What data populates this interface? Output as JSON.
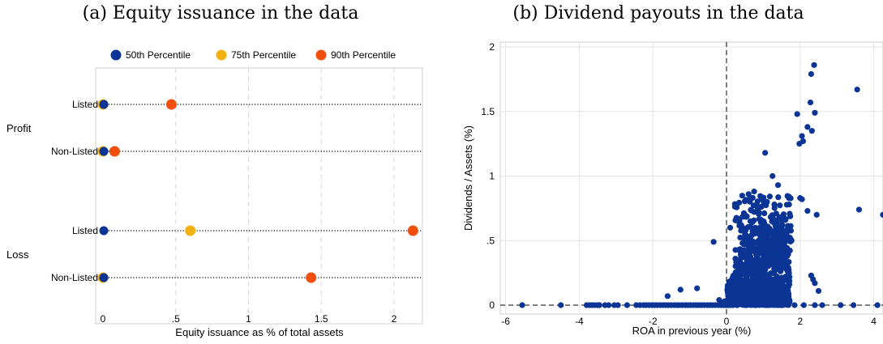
{
  "chart_data": [
    {
      "type": "dot",
      "title": "(a) Equity issuance in the data",
      "xlabel": "Equity issuance as % of total assets",
      "xlim": [
        0,
        2.2
      ],
      "xticks": [
        {
          "v": 0,
          "label": "0"
        },
        {
          "v": 0.5,
          "label": ".5"
        },
        {
          "v": 1,
          "label": "1"
        },
        {
          "v": 1.5,
          "label": "1.5"
        },
        {
          "v": 2,
          "label": "2"
        }
      ],
      "legend_position": "top",
      "grid": "vertical-dashed",
      "groups": [
        "Profit",
        "Loss"
      ],
      "rows": [
        {
          "group": "Profit",
          "label": "Listed"
        },
        {
          "group": "Profit",
          "label": "Non-Listed"
        },
        {
          "group": "Loss",
          "label": "Listed"
        },
        {
          "group": "Loss",
          "label": "Non-Listed"
        }
      ],
      "series": [
        {
          "name": "50th Percentile",
          "color": "#0b3595",
          "values": [
            0,
            0,
            0,
            0
          ]
        },
        {
          "name": "75th Percentile",
          "color": "#f2b011",
          "values": [
            0,
            0,
            0.6,
            0
          ]
        },
        {
          "name": "90th Percentile",
          "color": "#f24e0e",
          "values": [
            0.47,
            0.08,
            2.13,
            1.43
          ]
        }
      ]
    },
    {
      "type": "scatter",
      "title": "(b) Dividend payouts in the data",
      "xlabel": "ROA in previous year (%)",
      "ylabel": "Dividends / Assets (%)",
      "xlim": [
        -6.2,
        4.3
      ],
      "ylim": [
        -0.03,
        2.05
      ],
      "xticks": [
        {
          "v": -6,
          "label": "-6"
        },
        {
          "v": -4,
          "label": "-4"
        },
        {
          "v": -2,
          "label": "-2"
        },
        {
          "v": 0,
          "label": "0"
        },
        {
          "v": 2,
          "label": "2"
        },
        {
          "v": 4,
          "label": "4"
        }
      ],
      "yticks": [
        {
          "v": 0,
          "label": "0"
        },
        {
          "v": 0.5,
          "label": ".5"
        },
        {
          "v": 1,
          "label": "1"
        },
        {
          "v": 1.5,
          "label": "1.5"
        },
        {
          "v": 2,
          "label": "2"
        }
      ],
      "grid": true,
      "reference_lines": {
        "x": 0,
        "y": 0
      },
      "color": "#0b3595",
      "points": [
        [
          -5.55,
          0
        ],
        [
          -4.5,
          0
        ],
        [
          -3.8,
          0
        ],
        [
          -3.72,
          0
        ],
        [
          -3.65,
          0
        ],
        [
          -3.58,
          0
        ],
        [
          -3.5,
          0
        ],
        [
          -3.45,
          0
        ],
        [
          -3.3,
          0
        ],
        [
          -3.2,
          0
        ],
        [
          -3.05,
          0
        ],
        [
          -2.95,
          0
        ],
        [
          -2.7,
          0
        ],
        [
          -2.45,
          0
        ],
        [
          -2.35,
          0
        ],
        [
          -2.25,
          0
        ],
        [
          -2.18,
          0
        ],
        [
          -2.1,
          0
        ],
        [
          -2.02,
          0
        ],
        [
          -1.95,
          0
        ],
        [
          -1.88,
          0
        ],
        [
          -1.8,
          0
        ],
        [
          -1.72,
          0
        ],
        [
          -1.65,
          0
        ],
        [
          -1.58,
          0
        ],
        [
          -1.5,
          0
        ],
        [
          -1.42,
          0
        ],
        [
          -1.35,
          0
        ],
        [
          -1.28,
          0
        ],
        [
          -1.2,
          0
        ],
        [
          -1.12,
          0
        ],
        [
          -1.05,
          0
        ],
        [
          -0.98,
          0
        ],
        [
          -0.9,
          0
        ],
        [
          -0.82,
          0
        ],
        [
          -0.75,
          0
        ],
        [
          -0.68,
          0
        ],
        [
          -0.6,
          0
        ],
        [
          -0.52,
          0
        ],
        [
          -0.45,
          0
        ],
        [
          -0.38,
          0
        ],
        [
          -0.3,
          0
        ],
        [
          -0.22,
          0
        ],
        [
          -0.15,
          0
        ],
        [
          -0.08,
          0
        ],
        [
          -0.02,
          0
        ],
        [
          -1.6,
          0.07
        ],
        [
          -1.25,
          0.12
        ],
        [
          -0.8,
          0.13
        ],
        [
          -0.35,
          0.49
        ],
        [
          -0.2,
          0.04
        ],
        [
          -0.1,
          0.02
        ],
        [
          -0.05,
          0.03
        ],
        [
          0.05,
          0
        ],
        [
          0.3,
          0
        ],
        [
          0.55,
          0
        ],
        [
          0.8,
          0
        ],
        [
          1.05,
          0
        ],
        [
          1.3,
          0
        ],
        [
          1.5,
          0
        ],
        [
          1.85,
          0
        ],
        [
          2.1,
          0
        ],
        [
          2.4,
          0
        ],
        [
          2.6,
          0
        ],
        [
          3.1,
          0
        ],
        [
          3.45,
          0
        ],
        [
          4.1,
          0
        ],
        [
          2.38,
          1.86
        ],
        [
          2.3,
          1.79
        ],
        [
          2.28,
          1.57
        ],
        [
          2.4,
          1.49
        ],
        [
          3.55,
          1.67
        ],
        [
          1.92,
          1.48
        ],
        [
          2.2,
          1.38
        ],
        [
          2.32,
          1.35
        ],
        [
          2.05,
          1.31
        ],
        [
          1.98,
          1.25
        ],
        [
          2.08,
          1.27
        ],
        [
          1.05,
          1.18
        ],
        [
          1.4,
          0.93
        ],
        [
          1.25,
          1.0
        ],
        [
          1.7,
          0.78
        ],
        [
          2.0,
          0.83
        ],
        [
          2.05,
          0.82
        ],
        [
          2.2,
          0.73
        ],
        [
          2.45,
          0.7
        ],
        [
          3.6,
          0.74
        ],
        [
          4.25,
          0.7
        ],
        [
          2.3,
          0.23
        ],
        [
          2.35,
          0.2
        ],
        [
          2.4,
          0.17
        ],
        [
          2.5,
          0.11
        ],
        [
          0.6,
          0.86
        ],
        [
          0.75,
          0.88
        ],
        [
          0.95,
          0.82
        ],
        [
          1.1,
          0.8
        ],
        [
          0.5,
          0.7
        ],
        [
          0.85,
          0.75
        ],
        [
          1.3,
          0.78
        ],
        [
          0.4,
          0.62
        ],
        [
          1.6,
          0.66
        ],
        [
          1.5,
          0.6
        ],
        [
          0.1,
          0.6
        ],
        [
          0.35,
          0.65
        ]
      ]
    }
  ]
}
